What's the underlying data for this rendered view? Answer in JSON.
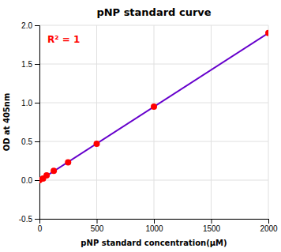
{
  "chart_data": {
    "type": "scatter",
    "title": "pNP standard curve",
    "x_label": "pNP standard concentration(μM)",
    "y_label": "OD at 405nm",
    "series": [
      {
        "type": "line",
        "color": "#6600CC",
        "x": [
          0,
          2000
        ],
        "values": [
          -0.0033641,
          1.8999619
        ]
      },
      {
        "type": "scatter",
        "color": "#FF0000",
        "x": [
          0,
          31.25,
          62.5,
          125,
          250,
          500,
          1000,
          2000
        ],
        "values": [
          0.0,
          0.02,
          0.06,
          0.12,
          0.23,
          0.47,
          0.95,
          1.9
        ]
      }
    ],
    "annotations": [
      {
        "text": "R² = 1",
        "color": "#FF0000"
      }
    ],
    "xlim": [
      0,
      2000
    ],
    "ylim": [
      -0.5,
      2.0
    ],
    "xticks": [
      0,
      500,
      1000,
      1500,
      2000
    ],
    "yticks": [
      -0.5,
      {
        "value": 0,
        "label": "0.0"
      },
      0.5,
      {
        "value": 1.0,
        "label": "1.0"
      },
      1.5,
      {
        "value": 2.0,
        "label": "2.0"
      }
    ],
    "grid": true
  }
}
